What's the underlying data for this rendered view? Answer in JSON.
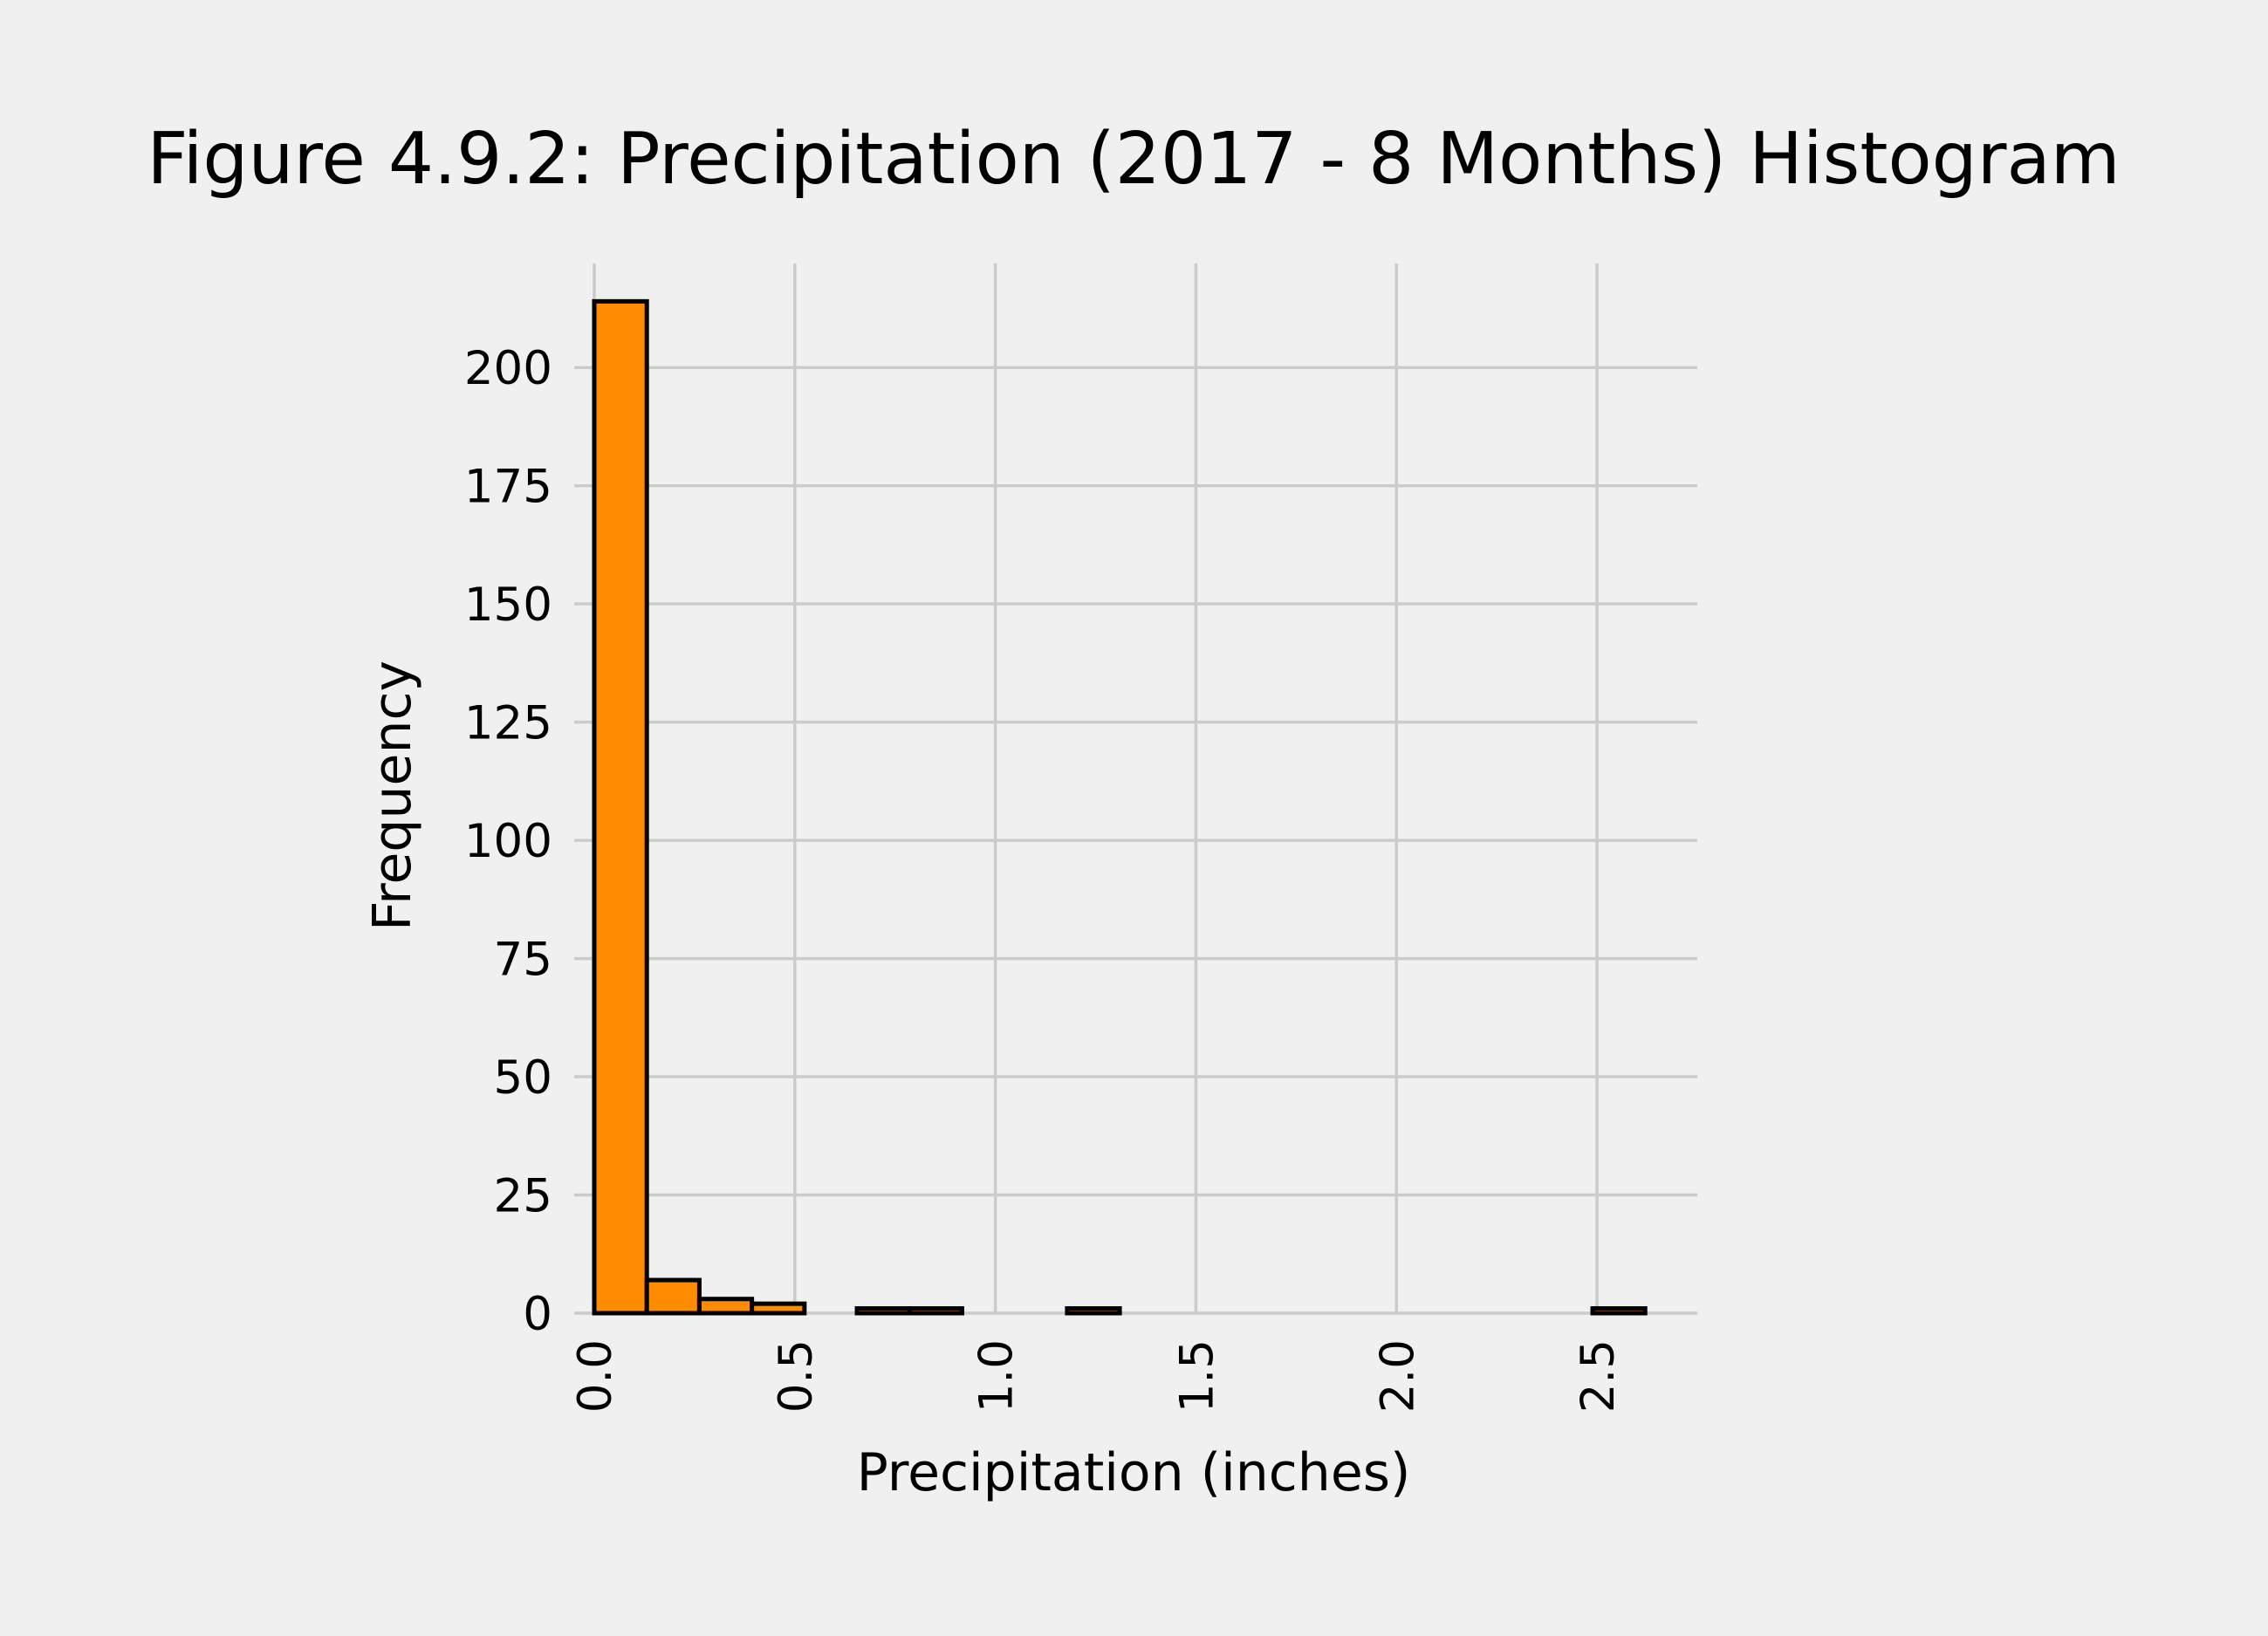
{
  "chart_data": {
    "type": "bar",
    "title": "Figure 4.9.2: Precipitation (2017 - 8 Months) Histogram",
    "xlabel": "Precipitation (inches)",
    "ylabel": "Frequency",
    "xlim": [
      -0.05,
      2.75
    ],
    "ylim": [
      0,
      222
    ],
    "x_ticks": [
      {
        "value": 0.0,
        "label": "0.0"
      },
      {
        "value": 0.5,
        "label": "0.5"
      },
      {
        "value": 1.0,
        "label": "1.0"
      },
      {
        "value": 1.5,
        "label": "1.5"
      },
      {
        "value": 2.0,
        "label": "2.0"
      },
      {
        "value": 2.5,
        "label": "2.5"
      }
    ],
    "y_ticks": [
      {
        "value": 0,
        "label": "0"
      },
      {
        "value": 25,
        "label": "25"
      },
      {
        "value": 50,
        "label": "50"
      },
      {
        "value": 75,
        "label": "75"
      },
      {
        "value": 100,
        "label": "100"
      },
      {
        "value": 125,
        "label": "125"
      },
      {
        "value": 150,
        "label": "150"
      },
      {
        "value": 175,
        "label": "175"
      },
      {
        "value": 200,
        "label": "200"
      }
    ],
    "bin_edges": [
      0.0,
      0.131,
      0.262,
      0.393,
      0.524,
      0.655,
      0.786,
      0.917,
      1.048,
      1.179,
      1.31,
      1.441,
      1.572,
      1.703,
      1.834,
      1.965,
      2.096,
      2.227,
      2.358,
      2.489,
      2.62
    ],
    "values": [
      214,
      7,
      3,
      2,
      0,
      1,
      1,
      0,
      0,
      1,
      0,
      0,
      0,
      0,
      0,
      0,
      0,
      0,
      0,
      1
    ],
    "bar_color": "#ff8c00",
    "edge_color": "#000000",
    "grid": true,
    "background_color": "#f0f0f0",
    "grid_color": "#cbcbcb"
  }
}
